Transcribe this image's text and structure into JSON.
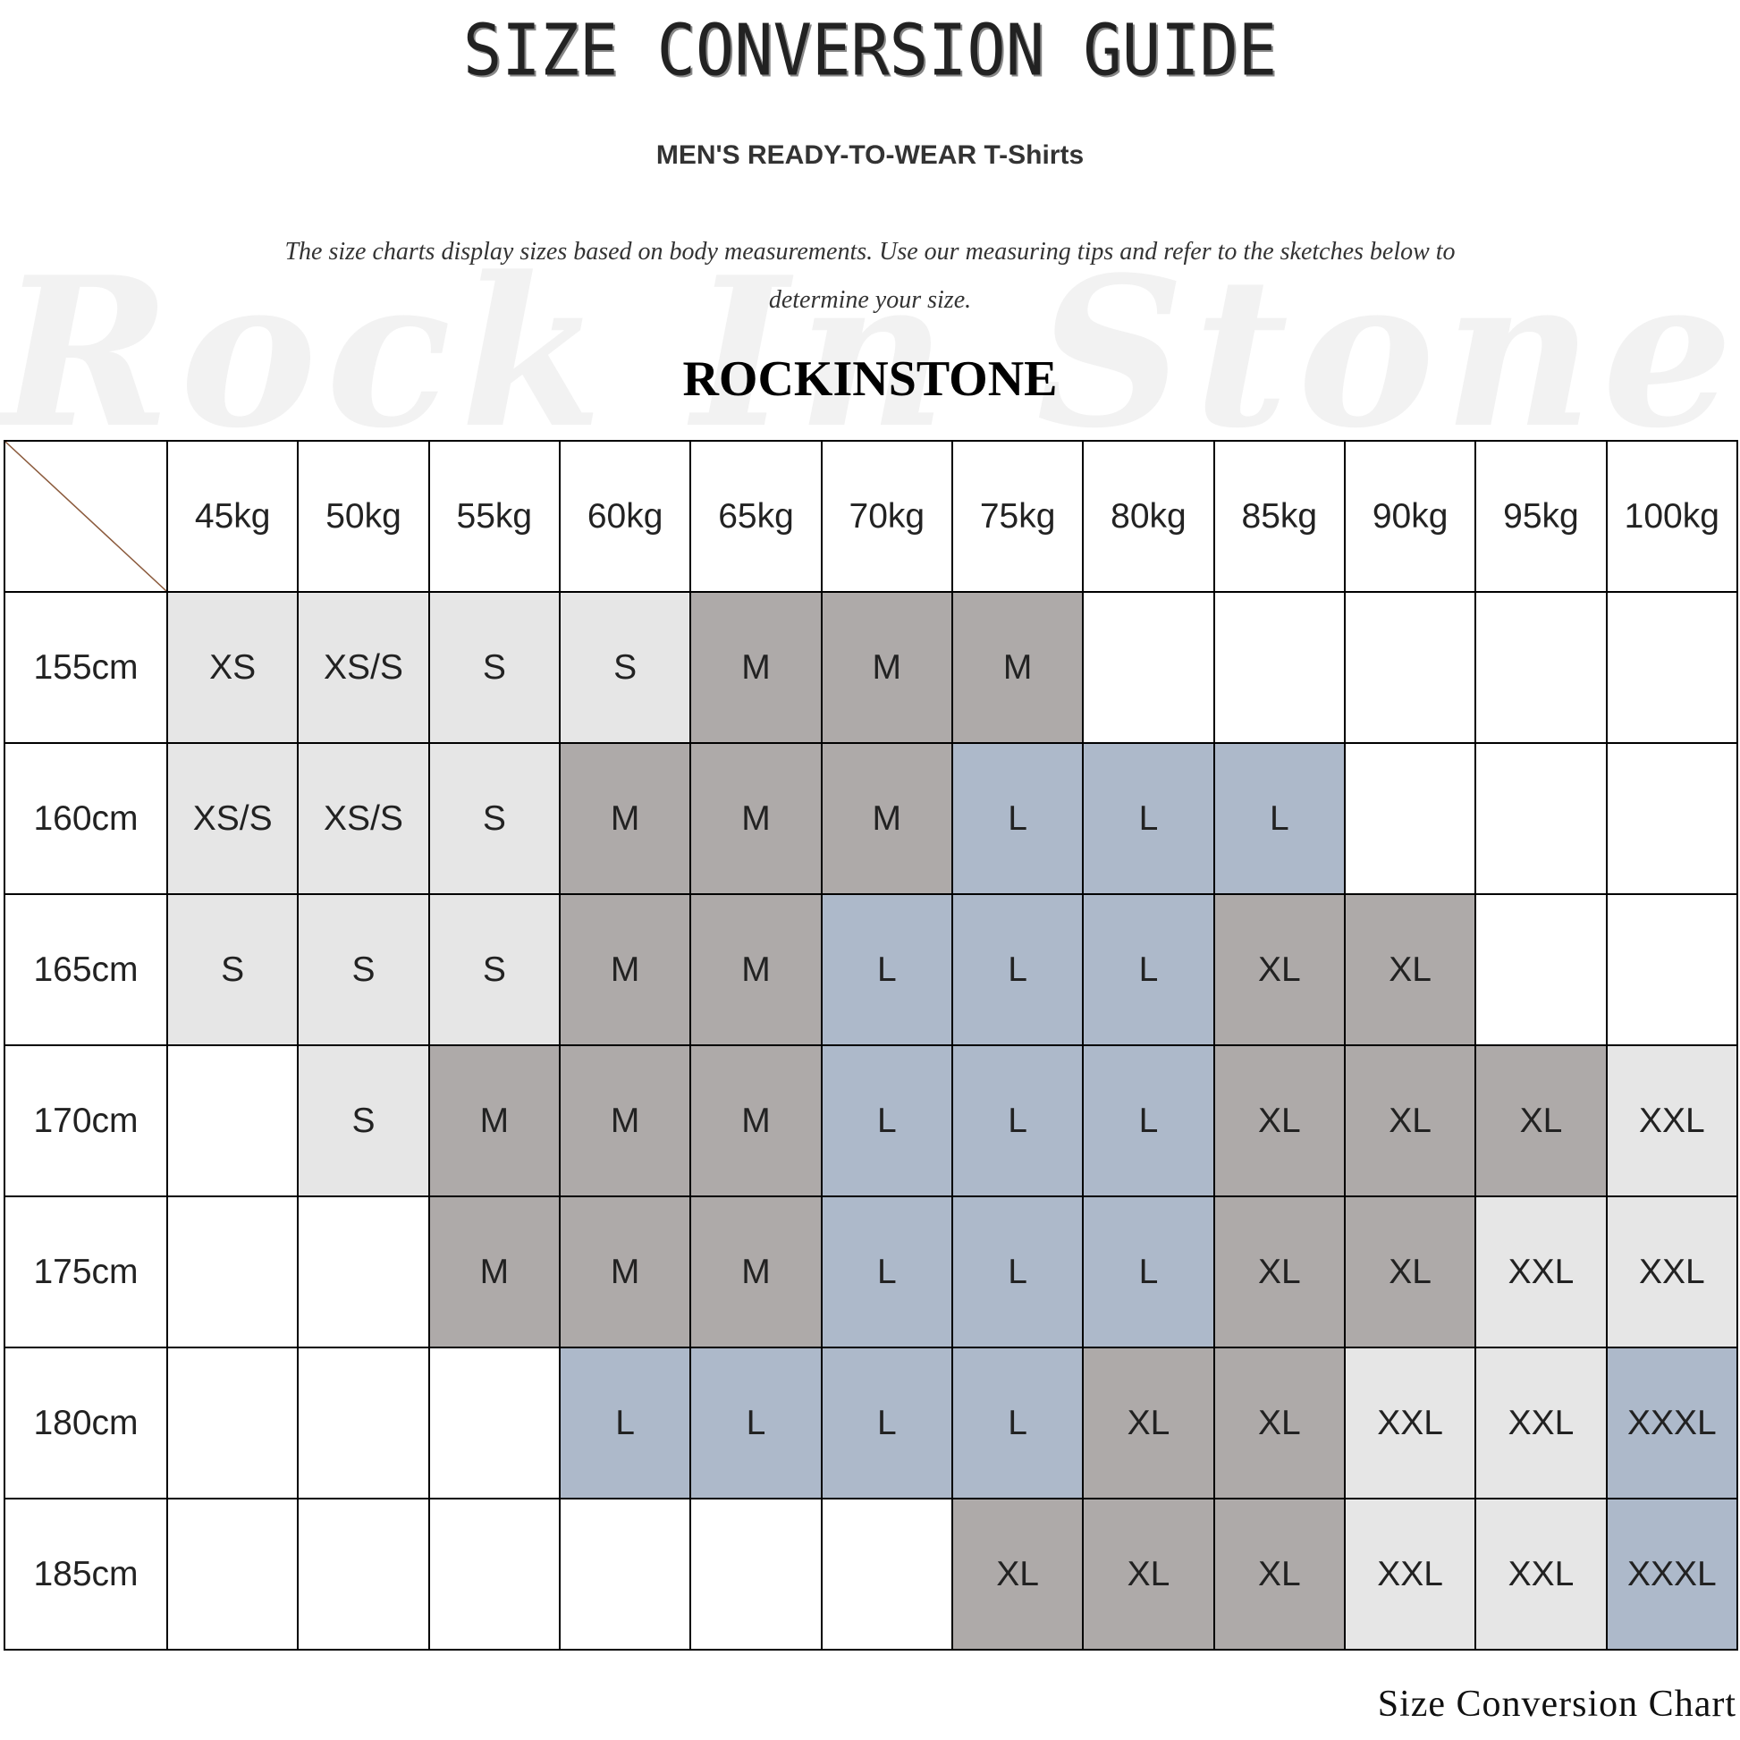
{
  "title": "SIZE CONVERSION GUIDE",
  "subtitle": "MEN'S READY-TO-WEAR T-Shirts",
  "description": "The size charts display sizes based on body measurements. Use our measuring tips and refer to the sketches below to determine your size.",
  "watermark": "Rock In Stone",
  "brand": "ROCKINSTONE",
  "footer": "Size Conversion Chart",
  "colors": {
    "XS": "#e6e6e6",
    "XS/S": "#e6e6e6",
    "S": "#e6e6e6",
    "M": "#aeaaa9",
    "L": "#adb9ca",
    "XL": "#aeaaa9",
    "XXL": "#e6e6e6",
    "XXXL": "#adb9ca",
    "corner_line": "#8b5a3c"
  },
  "table": {
    "columns": [
      "45kg",
      "50kg",
      "55kg",
      "60kg",
      "65kg",
      "70kg",
      "75kg",
      "80kg",
      "85kg",
      "90kg",
      "95kg",
      "100kg"
    ],
    "rows": [
      {
        "height": "155cm",
        "sizes": [
          "XS",
          "XS/S",
          "S",
          "S",
          "M",
          "M",
          "M",
          "",
          "",
          "",
          "",
          ""
        ]
      },
      {
        "height": "160cm",
        "sizes": [
          "XS/S",
          "XS/S",
          "S",
          "M",
          "M",
          "M",
          "L",
          "L",
          "L",
          "",
          "",
          ""
        ]
      },
      {
        "height": "165cm",
        "sizes": [
          "S",
          "S",
          "S",
          "M",
          "M",
          "L",
          "L",
          "L",
          "XL",
          "XL",
          "",
          ""
        ]
      },
      {
        "height": "170cm",
        "sizes": [
          "",
          "S",
          "M",
          "M",
          "M",
          "L",
          "L",
          "L",
          "XL",
          "XL",
          "XL",
          "XXL"
        ]
      },
      {
        "height": "175cm",
        "sizes": [
          "",
          "",
          "M",
          "M",
          "M",
          "L",
          "L",
          "L",
          "XL",
          "XL",
          "XXL",
          "XXL"
        ]
      },
      {
        "height": "180cm",
        "sizes": [
          "",
          "",
          "",
          "L",
          "L",
          "L",
          "L",
          "XL",
          "XL",
          "XXL",
          "XXL",
          "XXXL"
        ]
      },
      {
        "height": "185cm",
        "sizes": [
          "",
          "",
          "",
          "",
          "",
          "",
          "XL",
          "XL",
          "XL",
          "XXL",
          "XXL",
          "XXXL"
        ]
      }
    ]
  }
}
